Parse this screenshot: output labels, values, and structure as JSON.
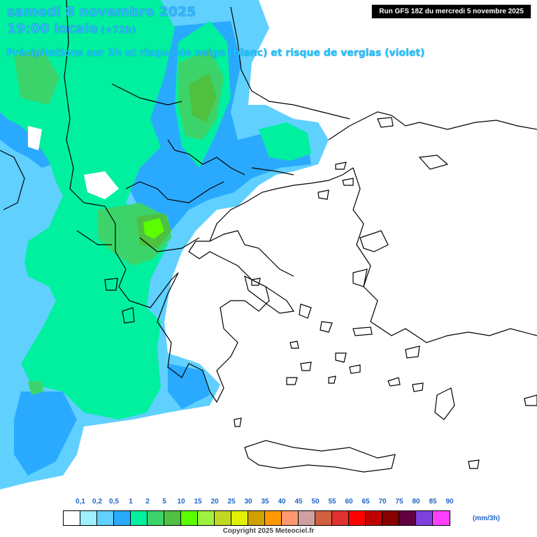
{
  "title": {
    "date": "samedi 8 novembre 2025",
    "time": "19:00 locale",
    "lead": "(+72h)",
    "subtitle": "Précipitations sur 3h et risque de neige (blanc) et risque de verglas (violet)"
  },
  "run_info": "Run GFS 18Z du mercredi 5 novembre 2025",
  "legend": {
    "labels": [
      "0,1",
      "0,2",
      "0,5",
      "1",
      "2",
      "5",
      "10",
      "15",
      "20",
      "25",
      "30",
      "35",
      "40",
      "45",
      "50",
      "55",
      "60",
      "65",
      "70",
      "75",
      "80",
      "85",
      "90"
    ],
    "colors": [
      "#ffffff",
      "#a0f0ff",
      "#60d0ff",
      "#2aaaff",
      "#00f0a0",
      "#3cd46a",
      "#50c040",
      "#5afe00",
      "#a0f040",
      "#c0d820",
      "#e0f000",
      "#d0a000",
      "#ff9900",
      "#ff9870",
      "#d0a0a0",
      "#d06040",
      "#e03030",
      "#ff0000",
      "#c00000",
      "#880000",
      "#600040",
      "#8040e0",
      "#ff40ff"
    ],
    "units": "(mm/3h)"
  },
  "copyright": "Copyright 2025 Meteociel.fr"
}
